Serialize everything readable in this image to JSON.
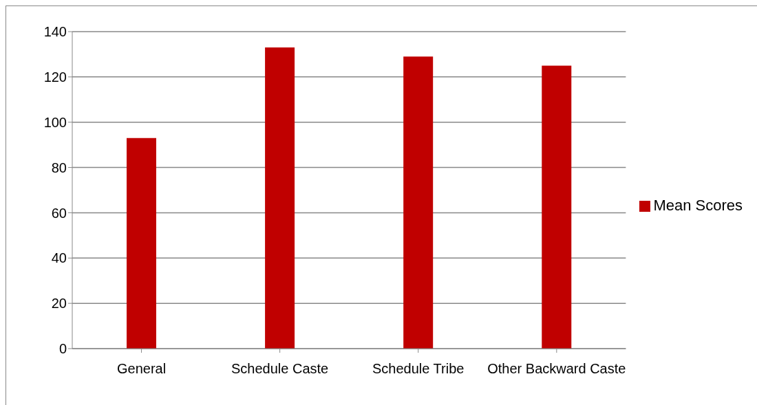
{
  "chart_data": {
    "type": "bar",
    "categories": [
      "General",
      "Schedule Caste",
      "Schedule Tribe",
      "Other Backward Caste"
    ],
    "series": [
      {
        "name": "Mean Scores",
        "color": "#c00000",
        "values": [
          93,
          133,
          129,
          125
        ]
      }
    ],
    "ylim": [
      0,
      140
    ],
    "yticks": [
      0,
      20,
      40,
      60,
      80,
      100,
      120,
      140
    ],
    "grid": "y",
    "legend": "right"
  }
}
